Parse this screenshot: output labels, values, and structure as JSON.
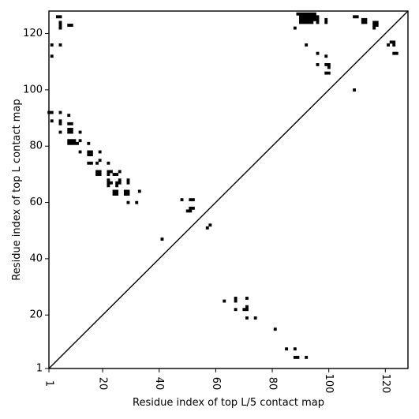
{
  "chart_data": {
    "type": "heatmap",
    "title": "",
    "xlabel": "Residue index of top L/5 contact map",
    "ylabel": "Residue index of top L contact map",
    "xlim": [
      1,
      128
    ],
    "ylim": [
      1,
      128
    ],
    "xticks": [
      1,
      20,
      40,
      60,
      80,
      100,
      120
    ],
    "yticks": [
      1,
      20,
      40,
      60,
      80,
      100,
      120
    ],
    "grid": false,
    "cell_color": "#000000",
    "diagonal": true,
    "upper_left_contacts": [
      [
        1,
        92
      ],
      [
        2,
        92
      ],
      [
        2,
        89
      ],
      [
        2,
        116
      ],
      [
        2,
        112
      ],
      [
        4,
        126
      ],
      [
        5,
        126
      ],
      [
        5,
        124
      ],
      [
        5,
        123
      ],
      [
        5,
        122
      ],
      [
        5,
        116
      ],
      [
        5,
        92
      ],
      [
        5,
        89
      ],
      [
        5,
        88
      ],
      [
        5,
        85
      ],
      [
        8,
        123
      ],
      [
        9,
        123
      ],
      [
        8,
        91
      ],
      [
        8,
        88
      ],
      [
        9,
        88
      ],
      [
        8,
        86
      ],
      [
        9,
        86
      ],
      [
        8,
        85
      ],
      [
        9,
        85
      ],
      [
        8,
        82
      ],
      [
        9,
        82
      ],
      [
        10,
        82
      ],
      [
        8,
        81
      ],
      [
        9,
        81
      ],
      [
        10,
        81
      ],
      [
        11,
        81
      ],
      [
        12,
        82
      ],
      [
        12,
        85
      ],
      [
        12,
        78
      ],
      [
        15,
        81
      ],
      [
        15,
        78
      ],
      [
        16,
        78
      ],
      [
        15,
        77
      ],
      [
        16,
        77
      ],
      [
        15,
        74
      ],
      [
        16,
        74
      ],
      [
        18,
        74
      ],
      [
        19,
        75
      ],
      [
        19,
        78
      ],
      [
        18,
        71
      ],
      [
        19,
        71
      ],
      [
        18,
        70
      ],
      [
        19,
        70
      ],
      [
        22,
        74
      ],
      [
        22,
        71
      ],
      [
        23,
        71
      ],
      [
        22,
        70
      ],
      [
        22,
        68
      ],
      [
        22,
        67
      ],
      [
        23,
        67
      ],
      [
        22,
        66
      ],
      [
        24,
        70
      ],
      [
        25,
        70
      ],
      [
        26,
        71
      ],
      [
        26,
        68
      ],
      [
        25,
        67
      ],
      [
        26,
        67
      ],
      [
        25,
        66
      ],
      [
        24,
        64
      ],
      [
        25,
        64
      ],
      [
        24,
        63
      ],
      [
        25,
        63
      ],
      [
        28,
        64
      ],
      [
        29,
        64
      ],
      [
        28,
        63
      ],
      [
        29,
        63
      ],
      [
        29,
        68
      ],
      [
        29,
        67
      ],
      [
        29,
        60
      ],
      [
        32,
        60
      ],
      [
        33,
        64
      ],
      [
        41,
        47
      ],
      [
        48,
        61
      ],
      [
        51,
        61
      ],
      [
        52,
        61
      ],
      [
        51,
        58
      ],
      [
        52,
        58
      ],
      [
        50,
        57
      ],
      [
        51,
        57
      ],
      [
        57,
        51
      ],
      [
        58,
        52
      ],
      [
        89,
        127
      ],
      [
        90,
        127
      ],
      [
        91,
        127
      ],
      [
        92,
        127
      ],
      [
        93,
        127
      ],
      [
        94,
        127
      ],
      [
        95,
        127
      ],
      [
        90,
        126
      ],
      [
        91,
        126
      ],
      [
        92,
        126
      ],
      [
        93,
        126
      ],
      [
        94,
        126
      ],
      [
        95,
        126
      ],
      [
        96,
        126
      ],
      [
        90,
        125
      ],
      [
        91,
        125
      ],
      [
        92,
        125
      ],
      [
        93,
        125
      ],
      [
        94,
        125
      ],
      [
        95,
        125
      ],
      [
        96,
        125
      ],
      [
        99,
        125
      ],
      [
        90,
        124
      ],
      [
        91,
        124
      ],
      [
        92,
        124
      ],
      [
        93,
        124
      ],
      [
        94,
        124
      ],
      [
        96,
        124
      ],
      [
        99,
        124
      ],
      [
        88,
        122
      ],
      [
        92,
        116
      ],
      [
        96,
        113
      ],
      [
        99,
        112
      ],
      [
        96,
        109
      ],
      [
        99,
        109
      ],
      [
        100,
        109
      ],
      [
        100,
        108
      ],
      [
        99,
        106
      ],
      [
        100,
        106
      ],
      [
        109,
        100
      ],
      [
        109,
        126
      ],
      [
        110,
        126
      ],
      [
        112,
        125
      ],
      [
        113,
        125
      ],
      [
        112,
        124
      ],
      [
        113,
        124
      ],
      [
        116,
        124
      ],
      [
        117,
        124
      ],
      [
        116,
        123
      ],
      [
        117,
        123
      ],
      [
        116,
        122
      ],
      [
        121,
        116
      ],
      [
        122,
        117
      ],
      [
        123,
        117
      ],
      [
        123,
        116
      ],
      [
        123,
        113
      ],
      [
        124,
        113
      ]
    ],
    "lower_right_contacts": [
      [
        63,
        25
      ],
      [
        67,
        26
      ],
      [
        67,
        25
      ],
      [
        71,
        26
      ],
      [
        67,
        22
      ],
      [
        70,
        22
      ],
      [
        71,
        22
      ],
      [
        71,
        23
      ],
      [
        71,
        19
      ],
      [
        74,
        19
      ],
      [
        81,
        15
      ],
      [
        85,
        8
      ],
      [
        88,
        8
      ],
      [
        88,
        5
      ],
      [
        89,
        5
      ],
      [
        92,
        5
      ]
    ]
  }
}
